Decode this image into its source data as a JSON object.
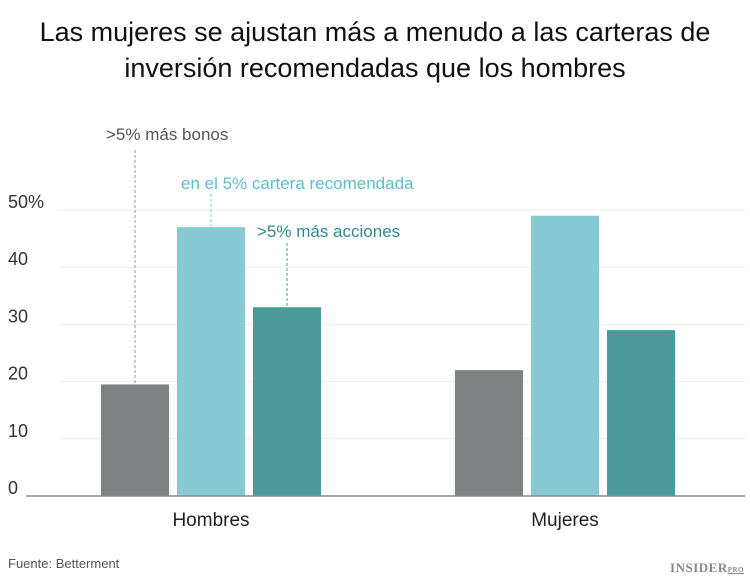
{
  "chart_data": {
    "type": "bar",
    "title": "Las mujeres se ajustan más a menudo a las carteras de inversión recomendadas que los hombres",
    "categories": [
      "Hombres",
      "Mujeres"
    ],
    "series": [
      {
        "name": ">5% más bonos",
        "color": "#7f8283",
        "values": [
          19.5,
          22
        ]
      },
      {
        "name": "en el 5% cartera recomendada",
        "color": "#88c9d3",
        "values": [
          47,
          49
        ]
      },
      {
        "name": ">5% más acciones",
        "color": "#4a9a9c",
        "values": [
          33,
          29
        ]
      }
    ],
    "yticks": [
      "0",
      "10",
      "20",
      "30",
      "40",
      "50%"
    ],
    "ylim": [
      0,
      50
    ],
    "grid": true,
    "legend": "annotations on first group",
    "source": "Fuente: Betterment"
  },
  "logo": {
    "main": "INSIDER",
    "sub": "PRO"
  }
}
